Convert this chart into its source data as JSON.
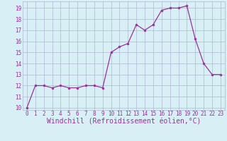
{
  "x": [
    0,
    1,
    2,
    3,
    4,
    5,
    6,
    7,
    8,
    9,
    10,
    11,
    12,
    13,
    14,
    15,
    16,
    17,
    18,
    19,
    20,
    21,
    22,
    23
  ],
  "y": [
    10.0,
    12.0,
    12.0,
    11.8,
    12.0,
    11.8,
    11.8,
    12.0,
    12.0,
    11.8,
    15.0,
    15.5,
    15.8,
    17.5,
    17.0,
    17.5,
    18.8,
    19.0,
    19.0,
    19.2,
    16.2,
    14.0,
    13.0,
    13.0
  ],
  "line_color": "#993399",
  "marker_color": "#993399",
  "bg_color": "#d7eff5",
  "grid_color": "#b0b8d0",
  "xlabel": "Windchill (Refroidissement éolien,°C)",
  "xlabel_color": "#993399",
  "ylim_min": 9.8,
  "ylim_max": 19.6,
  "xlim_min": -0.5,
  "xlim_max": 23.5,
  "yticks": [
    10,
    11,
    12,
    13,
    14,
    15,
    16,
    17,
    18,
    19
  ],
  "xticks": [
    0,
    1,
    2,
    3,
    4,
    5,
    6,
    7,
    8,
    9,
    10,
    11,
    12,
    13,
    14,
    15,
    16,
    17,
    18,
    19,
    20,
    21,
    22,
    23
  ],
  "tick_color": "#993399",
  "tick_fontsize": 5.5,
  "xlabel_fontsize": 7,
  "linewidth": 0.9,
  "markersize": 2.0
}
